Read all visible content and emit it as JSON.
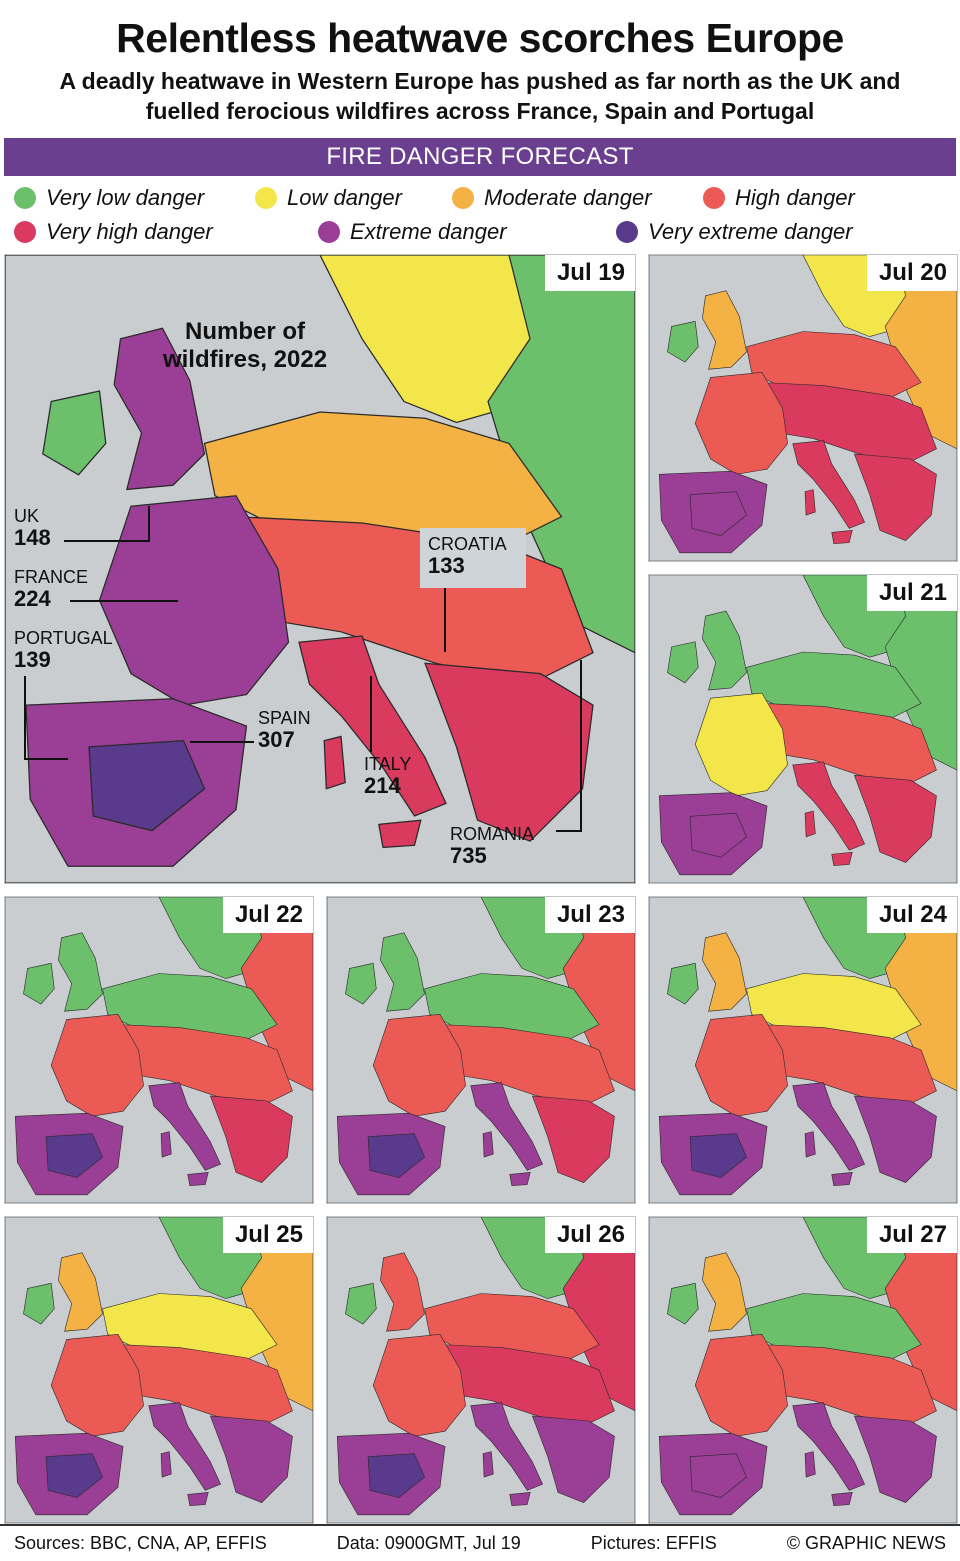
{
  "title": "Relentless heatwave scorches Europe",
  "subtitle": "A deadly heatwave in Western Europe has pushed as far north as the UK and fuelled ferocious wildfires across France, Spain and Portugal",
  "banner": "FIRE DANGER FORECAST",
  "legend": [
    {
      "label": "Very low danger",
      "color": "#6cc06c"
    },
    {
      "label": "Low danger",
      "color": "#f2e64a"
    },
    {
      "label": "Moderate danger",
      "color": "#f4b144"
    },
    {
      "label": "High danger",
      "color": "#ec5a55"
    },
    {
      "label": "Very high danger",
      "color": "#d93a5e"
    },
    {
      "label": "Extreme danger",
      "color": "#9a3e96"
    },
    {
      "label": "Very extreme danger",
      "color": "#5a3a8c"
    }
  ],
  "panels": [
    {
      "date": "Jul 19"
    },
    {
      "date": "Jul 20"
    },
    {
      "date": "Jul 21"
    },
    {
      "date": "Jul 22"
    },
    {
      "date": "Jul 23"
    },
    {
      "date": "Jul 24"
    },
    {
      "date": "Jul 25"
    },
    {
      "date": "Jul 26"
    },
    {
      "date": "Jul 27"
    }
  ],
  "wildfires": {
    "title": "Number of wildfires, 2022",
    "countries": [
      {
        "name": "UK",
        "count": "148"
      },
      {
        "name": "FRANCE",
        "count": "224"
      },
      {
        "name": "PORTUGAL",
        "count": "139"
      },
      {
        "name": "SPAIN",
        "count": "307"
      },
      {
        "name": "ITALY",
        "count": "214"
      },
      {
        "name": "CROATIA",
        "count": "133"
      },
      {
        "name": "ROMANIA",
        "count": "735"
      }
    ]
  },
  "footer": {
    "sources": "Sources: BBC, CNA, AP, EFFIS",
    "data": "Data: 0900GMT, Jul 19",
    "pictures": "Pictures: EFFIS",
    "credit": "© GRAPHIC NEWS"
  }
}
